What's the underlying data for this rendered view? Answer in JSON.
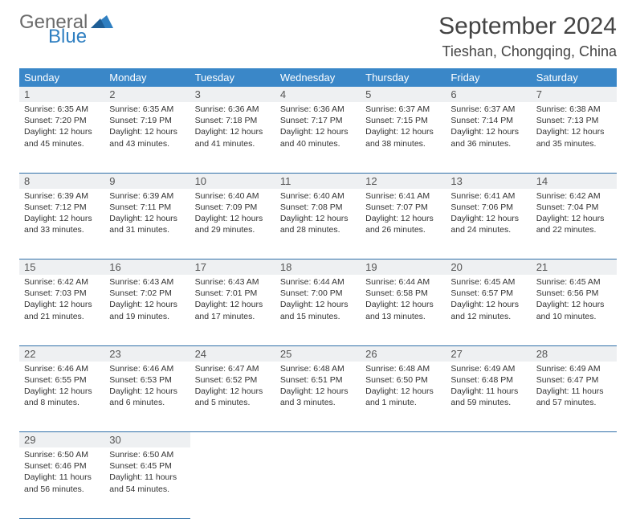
{
  "brand": {
    "part1": "General",
    "part2": "Blue"
  },
  "title": "September 2024",
  "location": "Tieshan, Chongqing, China",
  "colors": {
    "header_bg": "#3a87c8",
    "header_text": "#ffffff",
    "daynum_bg": "#eef0f2",
    "row_border": "#2f6fa8",
    "logo_gray": "#6a6a6a",
    "logo_blue": "#2f7fc1",
    "body_text": "#333333"
  },
  "day_headers": [
    "Sunday",
    "Monday",
    "Tuesday",
    "Wednesday",
    "Thursday",
    "Friday",
    "Saturday"
  ],
  "weeks": [
    [
      {
        "n": "1",
        "sr": "6:35 AM",
        "ss": "7:20 PM",
        "dl": "12 hours and 45 minutes."
      },
      {
        "n": "2",
        "sr": "6:35 AM",
        "ss": "7:19 PM",
        "dl": "12 hours and 43 minutes."
      },
      {
        "n": "3",
        "sr": "6:36 AM",
        "ss": "7:18 PM",
        "dl": "12 hours and 41 minutes."
      },
      {
        "n": "4",
        "sr": "6:36 AM",
        "ss": "7:17 PM",
        "dl": "12 hours and 40 minutes."
      },
      {
        "n": "5",
        "sr": "6:37 AM",
        "ss": "7:15 PM",
        "dl": "12 hours and 38 minutes."
      },
      {
        "n": "6",
        "sr": "6:37 AM",
        "ss": "7:14 PM",
        "dl": "12 hours and 36 minutes."
      },
      {
        "n": "7",
        "sr": "6:38 AM",
        "ss": "7:13 PM",
        "dl": "12 hours and 35 minutes."
      }
    ],
    [
      {
        "n": "8",
        "sr": "6:39 AM",
        "ss": "7:12 PM",
        "dl": "12 hours and 33 minutes."
      },
      {
        "n": "9",
        "sr": "6:39 AM",
        "ss": "7:11 PM",
        "dl": "12 hours and 31 minutes."
      },
      {
        "n": "10",
        "sr": "6:40 AM",
        "ss": "7:09 PM",
        "dl": "12 hours and 29 minutes."
      },
      {
        "n": "11",
        "sr": "6:40 AM",
        "ss": "7:08 PM",
        "dl": "12 hours and 28 minutes."
      },
      {
        "n": "12",
        "sr": "6:41 AM",
        "ss": "7:07 PM",
        "dl": "12 hours and 26 minutes."
      },
      {
        "n": "13",
        "sr": "6:41 AM",
        "ss": "7:06 PM",
        "dl": "12 hours and 24 minutes."
      },
      {
        "n": "14",
        "sr": "6:42 AM",
        "ss": "7:04 PM",
        "dl": "12 hours and 22 minutes."
      }
    ],
    [
      {
        "n": "15",
        "sr": "6:42 AM",
        "ss": "7:03 PM",
        "dl": "12 hours and 21 minutes."
      },
      {
        "n": "16",
        "sr": "6:43 AM",
        "ss": "7:02 PM",
        "dl": "12 hours and 19 minutes."
      },
      {
        "n": "17",
        "sr": "6:43 AM",
        "ss": "7:01 PM",
        "dl": "12 hours and 17 minutes."
      },
      {
        "n": "18",
        "sr": "6:44 AM",
        "ss": "7:00 PM",
        "dl": "12 hours and 15 minutes."
      },
      {
        "n": "19",
        "sr": "6:44 AM",
        "ss": "6:58 PM",
        "dl": "12 hours and 13 minutes."
      },
      {
        "n": "20",
        "sr": "6:45 AM",
        "ss": "6:57 PM",
        "dl": "12 hours and 12 minutes."
      },
      {
        "n": "21",
        "sr": "6:45 AM",
        "ss": "6:56 PM",
        "dl": "12 hours and 10 minutes."
      }
    ],
    [
      {
        "n": "22",
        "sr": "6:46 AM",
        "ss": "6:55 PM",
        "dl": "12 hours and 8 minutes."
      },
      {
        "n": "23",
        "sr": "6:46 AM",
        "ss": "6:53 PM",
        "dl": "12 hours and 6 minutes."
      },
      {
        "n": "24",
        "sr": "6:47 AM",
        "ss": "6:52 PM",
        "dl": "12 hours and 5 minutes."
      },
      {
        "n": "25",
        "sr": "6:48 AM",
        "ss": "6:51 PM",
        "dl": "12 hours and 3 minutes."
      },
      {
        "n": "26",
        "sr": "6:48 AM",
        "ss": "6:50 PM",
        "dl": "12 hours and 1 minute."
      },
      {
        "n": "27",
        "sr": "6:49 AM",
        "ss": "6:48 PM",
        "dl": "11 hours and 59 minutes."
      },
      {
        "n": "28",
        "sr": "6:49 AM",
        "ss": "6:47 PM",
        "dl": "11 hours and 57 minutes."
      }
    ],
    [
      {
        "n": "29",
        "sr": "6:50 AM",
        "ss": "6:46 PM",
        "dl": "11 hours and 56 minutes."
      },
      {
        "n": "30",
        "sr": "6:50 AM",
        "ss": "6:45 PM",
        "dl": "11 hours and 54 minutes."
      },
      null,
      null,
      null,
      null,
      null
    ]
  ],
  "labels": {
    "sunrise": "Sunrise:",
    "sunset": "Sunset:",
    "daylight": "Daylight:"
  }
}
